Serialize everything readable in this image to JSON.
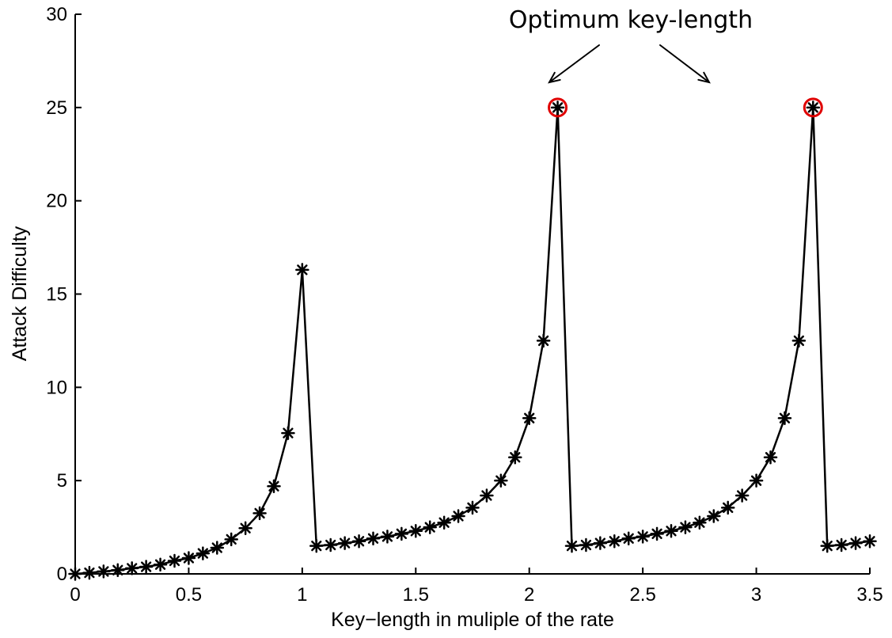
{
  "chart_data": {
    "type": "line",
    "title": "",
    "xlabel": "Key−length in muliple of the rate",
    "ylabel": "Attack Difficulty",
    "xlim": [
      0,
      3.5
    ],
    "ylim": [
      0,
      30
    ],
    "xticks": [
      0,
      0.5,
      1,
      1.5,
      2,
      2.5,
      3,
      3.5
    ],
    "xtick_labels": [
      "0",
      "0.5",
      "1",
      "1.5",
      "2",
      "2.5",
      "3",
      "3.5"
    ],
    "yticks": [
      0,
      5,
      10,
      15,
      20,
      25,
      30
    ],
    "ytick_labels": [
      "0",
      "5",
      "10",
      "15",
      "20",
      "25",
      "30"
    ],
    "grid": false,
    "series": [
      {
        "marker": "asterisk",
        "color": "#000000",
        "points": [
          [
            0.0,
            0.0
          ],
          [
            0.0625,
            0.06
          ],
          [
            0.125,
            0.13
          ],
          [
            0.1875,
            0.2
          ],
          [
            0.25,
            0.3
          ],
          [
            0.3125,
            0.38
          ],
          [
            0.375,
            0.5
          ],
          [
            0.4375,
            0.7
          ],
          [
            0.5,
            0.85
          ],
          [
            0.5625,
            1.1
          ],
          [
            0.625,
            1.4
          ],
          [
            0.6875,
            1.85
          ],
          [
            0.75,
            2.45
          ],
          [
            0.8125,
            3.25
          ],
          [
            0.875,
            4.7
          ],
          [
            0.9375,
            7.55
          ],
          [
            1.0,
            16.3
          ],
          [
            1.0625,
            1.5
          ],
          [
            1.125,
            1.55
          ],
          [
            1.1875,
            1.65
          ],
          [
            1.25,
            1.75
          ],
          [
            1.3125,
            1.9
          ],
          [
            1.375,
            2.0
          ],
          [
            1.4375,
            2.15
          ],
          [
            1.5,
            2.3
          ],
          [
            1.5625,
            2.5
          ],
          [
            1.625,
            2.75
          ],
          [
            1.6875,
            3.1
          ],
          [
            1.75,
            3.55
          ],
          [
            1.8125,
            4.2
          ],
          [
            1.875,
            5.0
          ],
          [
            1.9375,
            6.25
          ],
          [
            2.0,
            8.35
          ],
          [
            2.0625,
            12.5
          ],
          [
            2.125,
            25.0
          ],
          [
            2.1875,
            1.5
          ],
          [
            2.25,
            1.55
          ],
          [
            2.3125,
            1.65
          ],
          [
            2.375,
            1.75
          ],
          [
            2.4375,
            1.9
          ],
          [
            2.5,
            2.0
          ],
          [
            2.5625,
            2.15
          ],
          [
            2.625,
            2.3
          ],
          [
            2.6875,
            2.5
          ],
          [
            2.75,
            2.75
          ],
          [
            2.8125,
            3.1
          ],
          [
            2.875,
            3.55
          ],
          [
            2.9375,
            4.2
          ],
          [
            3.0,
            5.0
          ],
          [
            3.0625,
            6.25
          ],
          [
            3.125,
            8.35
          ],
          [
            3.1875,
            12.5
          ],
          [
            3.25,
            25.0
          ],
          [
            3.3125,
            1.5
          ],
          [
            3.375,
            1.55
          ],
          [
            3.4375,
            1.65
          ],
          [
            3.5,
            1.75
          ]
        ]
      }
    ],
    "highlighted_points": [
      [
        2.125,
        25.0
      ],
      [
        3.25,
        25.0
      ]
    ],
    "highlight_color": "#e00000",
    "annotation": {
      "text": "Optimum key-length",
      "targets": [
        [
          2.125,
          25.0
        ],
        [
          3.25,
          25.0
        ]
      ]
    }
  }
}
